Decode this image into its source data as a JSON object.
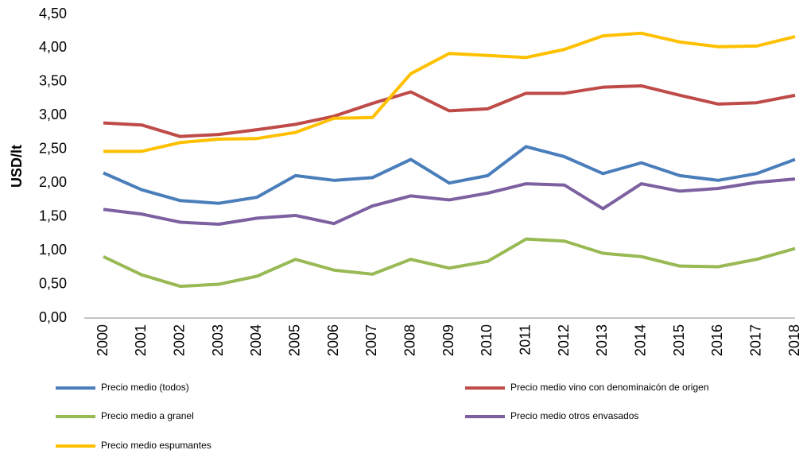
{
  "chart_data": {
    "type": "line",
    "y_label": "USD/lt",
    "categories": [
      "2000",
      "2001",
      "2002",
      "2003",
      "2004",
      "2005",
      "2006",
      "2007",
      "2008",
      "2009",
      "2010",
      "2011",
      "2012",
      "2013",
      "2014",
      "2015",
      "2016",
      "2017",
      "2018"
    ],
    "series": [
      {
        "name": "Precio  medio (todos)",
        "color": "#4a7ebb",
        "values": [
          2.15,
          1.9,
          1.74,
          1.7,
          1.79,
          2.11,
          2.04,
          2.08,
          2.35,
          2.0,
          2.11,
          2.54,
          2.39,
          2.14,
          2.3,
          2.11,
          2.04,
          2.14,
          2.35
        ]
      },
      {
        "name": "Precio medio vino con denominaicón de origen",
        "color": "#be4b48",
        "values": [
          2.89,
          2.86,
          2.69,
          2.72,
          2.79,
          2.87,
          2.99,
          3.18,
          3.35,
          3.07,
          3.1,
          3.33,
          3.33,
          3.42,
          3.44,
          3.3,
          3.17,
          3.19,
          3.3
        ]
      },
      {
        "name": "Precio medio a granel",
        "color": "#98b954",
        "values": [
          0.91,
          0.64,
          0.47,
          0.5,
          0.62,
          0.87,
          0.71,
          0.65,
          0.87,
          0.74,
          0.84,
          1.17,
          1.14,
          0.96,
          0.91,
          0.77,
          0.76,
          0.87,
          1.03
        ]
      },
      {
        "name": "Precio medio otros envasados",
        "color": "#7d60a0",
        "values": [
          1.61,
          1.54,
          1.42,
          1.39,
          1.48,
          1.52,
          1.4,
          1.66,
          1.81,
          1.75,
          1.85,
          1.99,
          1.97,
          1.62,
          1.99,
          1.88,
          1.92,
          2.01,
          2.06
        ]
      },
      {
        "name": "Precio medio espumantes",
        "color": "#ffc000",
        "values": [
          2.47,
          2.47,
          2.6,
          2.65,
          2.66,
          2.75,
          2.96,
          2.97,
          3.62,
          3.92,
          3.89,
          3.86,
          3.98,
          4.18,
          4.22,
          4.09,
          4.02,
          4.03,
          4.17
        ]
      }
    ],
    "ylim": [
      0,
      4.5
    ],
    "yticks": [
      {
        "value": 0,
        "label": "0,00"
      },
      {
        "value": 0.5,
        "label": "0,50"
      },
      {
        "value": 1,
        "label": "1,00"
      },
      {
        "value": 1.5,
        "label": "1,50"
      },
      {
        "value": 2,
        "label": "2,00"
      },
      {
        "value": 2.5,
        "label": "2,50"
      },
      {
        "value": 3,
        "label": "3,00"
      },
      {
        "value": 3.5,
        "label": "3,50"
      },
      {
        "value": 4,
        "label": "4,00"
      },
      {
        "value": 4.5,
        "label": "4,50"
      }
    ],
    "grid": false,
    "legend": "bottom"
  }
}
